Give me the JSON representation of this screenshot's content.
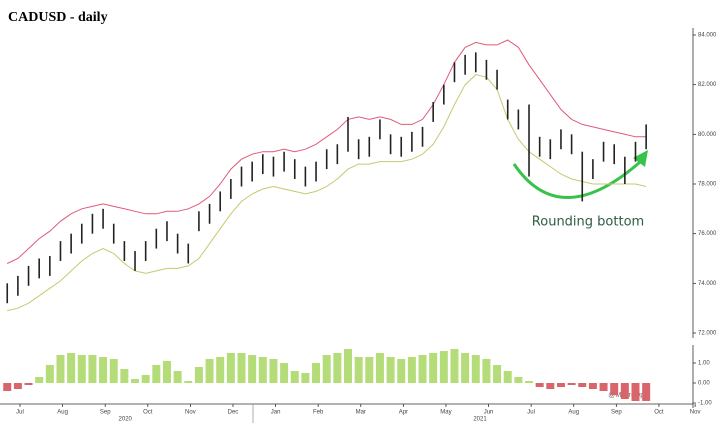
{
  "chart_data": {
    "type": "hilo",
    "title": "CADUSD - daily",
    "annotation": "Rounding bottom",
    "watermark": "@MacroOps",
    "x": [
      -0.3,
      -0.05,
      0.2,
      0.45,
      0.7,
      0.95,
      1.2,
      1.45,
      1.7,
      1.95,
      2.2,
      2.45,
      2.7,
      2.95,
      3.2,
      3.45,
      3.7,
      3.95,
      4.2,
      4.45,
      4.7,
      4.95,
      5.2,
      5.45,
      5.7,
      5.95,
      6.2,
      6.45,
      6.7,
      6.95,
      7.2,
      7.45,
      7.7,
      7.95,
      8.2,
      8.45,
      8.7,
      8.95,
      9.2,
      9.45,
      9.7,
      9.95,
      10.2,
      10.45,
      10.7,
      10.95,
      11.2,
      11.45,
      11.7,
      11.95,
      12.2,
      12.45,
      12.7,
      12.95,
      13.2,
      13.45,
      13.7,
      13.95,
      14.2,
      14.45,
      14.7
    ],
    "high": [
      74.0,
      74.3,
      74.7,
      75.0,
      75.1,
      75.7,
      76.0,
      76.4,
      76.8,
      77.0,
      76.4,
      75.7,
      75.3,
      75.7,
      76.2,
      76.5,
      76.0,
      75.6,
      76.9,
      77.2,
      77.7,
      78.2,
      78.7,
      78.9,
      79.2,
      79.1,
      79.3,
      79.0,
      78.7,
      78.9,
      79.4,
      79.6,
      80.7,
      79.8,
      79.9,
      80.6,
      80.0,
      79.9,
      80.1,
      80.3,
      81.3,
      82.0,
      82.9,
      83.2,
      83.3,
      83.0,
      82.6,
      81.4,
      81.0,
      81.2,
      79.9,
      79.8,
      80.2,
      80.0,
      79.3,
      79.0,
      79.7,
      79.6,
      79.1,
      79.7,
      80.4
    ],
    "low": [
      73.2,
      73.5,
      73.9,
      74.2,
      74.3,
      74.9,
      75.2,
      75.6,
      76.0,
      76.2,
      75.6,
      74.9,
      74.5,
      74.9,
      75.4,
      75.7,
      75.2,
      74.8,
      76.1,
      76.4,
      76.9,
      77.4,
      77.9,
      78.1,
      78.4,
      78.3,
      78.5,
      78.2,
      77.9,
      78.1,
      78.6,
      78.8,
      79.3,
      79.0,
      79.1,
      79.8,
      79.2,
      79.1,
      79.3,
      79.5,
      80.5,
      81.2,
      82.1,
      82.4,
      82.5,
      82.2,
      81.8,
      80.6,
      80.2,
      78.3,
      79.1,
      79.0,
      79.4,
      79.2,
      77.3,
      78.2,
      78.9,
      78.8,
      78.0,
      78.9,
      79.4
    ],
    "bar_color": "#222222",
    "bands": [
      {
        "color": "#e05a78",
        "values": [
          74.8,
          75.0,
          75.4,
          75.8,
          76.1,
          76.5,
          76.8,
          77.0,
          77.1,
          77.2,
          77.1,
          77.0,
          76.9,
          76.8,
          76.8,
          76.9,
          76.9,
          77.0,
          77.2,
          77.5,
          78.0,
          78.6,
          79.0,
          79.2,
          79.3,
          79.3,
          79.4,
          79.3,
          79.4,
          79.6,
          79.9,
          80.2,
          80.6,
          80.7,
          80.6,
          80.7,
          80.6,
          80.4,
          80.4,
          80.6,
          81.2,
          82.0,
          82.9,
          83.5,
          83.7,
          83.6,
          83.6,
          83.8,
          83.5,
          82.8,
          82.2,
          81.6,
          81.0,
          80.6,
          80.4,
          80.3,
          80.2,
          80.1,
          80.0,
          79.9,
          79.9
        ]
      },
      {
        "color": "#c8c870",
        "values": [
          72.9,
          73.0,
          73.2,
          73.5,
          73.8,
          74.1,
          74.5,
          74.9,
          75.2,
          75.4,
          75.2,
          74.8,
          74.5,
          74.4,
          74.5,
          74.6,
          74.6,
          74.7,
          75.0,
          75.6,
          76.2,
          76.8,
          77.3,
          77.6,
          77.8,
          77.9,
          77.8,
          77.7,
          77.6,
          77.7,
          77.9,
          78.2,
          78.6,
          78.8,
          78.8,
          78.9,
          78.9,
          78.9,
          79.0,
          79.2,
          79.6,
          80.3,
          81.2,
          82.0,
          82.4,
          82.3,
          81.8,
          80.6,
          79.8,
          79.3,
          79.0,
          78.7,
          78.4,
          78.2,
          78.1,
          78.0,
          78.0,
          78.0,
          78.0,
          78.0,
          77.9
        ]
      }
    ],
    "ylim": [
      72,
      84
    ],
    "yticks": [
      {
        "value": 72,
        "label": "72.000"
      },
      {
        "value": 74,
        "label": "74.000"
      },
      {
        "value": 76,
        "label": "76.000"
      },
      {
        "value": 78,
        "label": "78.000"
      },
      {
        "value": 80,
        "label": "80.000"
      },
      {
        "value": 82,
        "label": "82.000"
      },
      {
        "value": 84,
        "label": "84.000"
      }
    ],
    "xlim": [
      -0.47,
      15.8
    ],
    "xticks": [
      {
        "value": 0,
        "label": "Jul"
      },
      {
        "value": 1,
        "label": "Aug"
      },
      {
        "value": 2,
        "label": "Sep"
      },
      {
        "value": 3,
        "label": "Oct"
      },
      {
        "value": 4,
        "label": "Nov"
      },
      {
        "value": 5,
        "label": "Dec"
      },
      {
        "value": 6,
        "label": "Jan"
      },
      {
        "value": 7,
        "label": "Feb"
      },
      {
        "value": 8,
        "label": "Mar"
      },
      {
        "value": 9,
        "label": "Apr"
      },
      {
        "value": 10,
        "label": "May"
      },
      {
        "value": 11,
        "label": "Jun"
      },
      {
        "value": 12,
        "label": "Jul"
      },
      {
        "value": 13,
        "label": "Aug"
      },
      {
        "value": 14,
        "label": "Sep"
      },
      {
        "value": 15,
        "label": "Oct"
      },
      {
        "value": 15.85,
        "label": "Nov"
      }
    ],
    "xticks_year": [
      {
        "value": 2.47,
        "label": "2020"
      },
      {
        "value": 10.8,
        "label": "2021"
      }
    ],
    "histogram": {
      "values": [
        -0.4,
        -0.3,
        -0.1,
        0.3,
        0.9,
        1.4,
        1.5,
        1.4,
        1.4,
        1.3,
        1.2,
        0.7,
        0.2,
        0.4,
        0.9,
        1.1,
        0.6,
        0.1,
        0.8,
        1.2,
        1.3,
        1.5,
        1.5,
        1.4,
        1.3,
        1.2,
        1.0,
        0.6,
        0.5,
        1.0,
        1.4,
        1.5,
        1.7,
        1.3,
        1.3,
        1.5,
        1.3,
        1.2,
        1.3,
        1.4,
        1.5,
        1.6,
        1.7,
        1.5,
        1.4,
        1.2,
        0.9,
        0.6,
        0.3,
        0.1,
        -0.2,
        -0.3,
        -0.2,
        -0.1,
        -0.2,
        -0.3,
        -0.4,
        -0.6,
        -0.8,
        -0.9,
        -0.9
      ],
      "positive_color": "#b4dc78",
      "negative_color": "#d9656b",
      "ylim": [
        -1.35,
        2.05
      ],
      "yticks": [
        {
          "value": 1,
          "label": "1.00"
        },
        {
          "value": 0,
          "label": "0.00"
        },
        {
          "value": -1,
          "label": "-1.00"
        }
      ]
    }
  }
}
